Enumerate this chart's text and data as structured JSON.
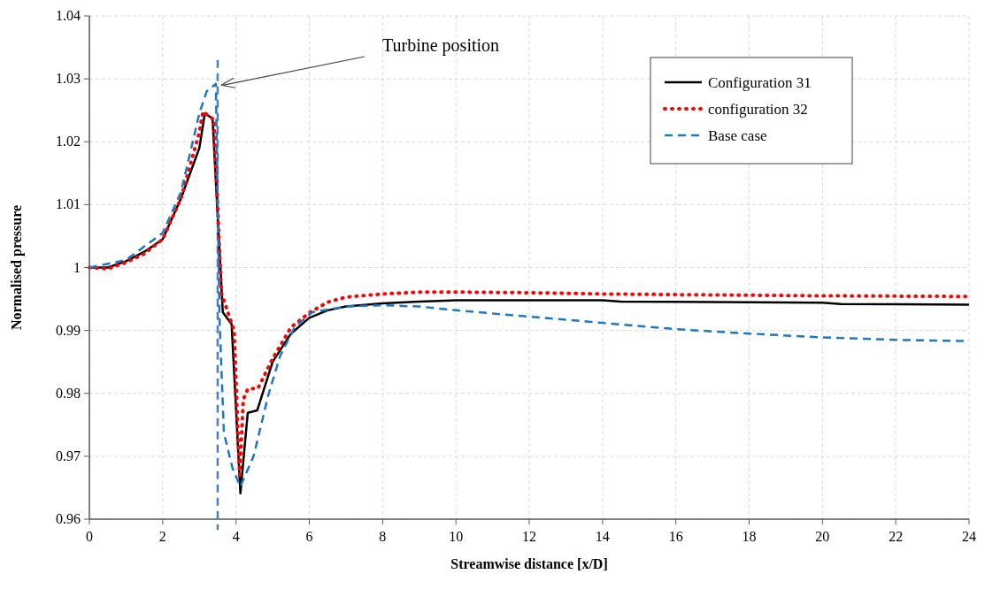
{
  "chart_data": {
    "type": "line",
    "xlabel": "Streamwise distance [x/D]",
    "ylabel": "Normalised pressure",
    "xlim": [
      0,
      24
    ],
    "xticks": [
      0,
      2,
      4,
      6,
      8,
      10,
      12,
      14,
      16,
      18,
      20,
      22,
      24
    ],
    "ylim": [
      0.96,
      1.04
    ],
    "yticks": [
      0.96,
      0.97,
      0.98,
      0.99,
      1,
      1.01,
      1.02,
      1.03,
      1.04
    ],
    "grid": true,
    "legend": "top right",
    "series": [
      {
        "name": "Configuration 31",
        "color": "#000000",
        "line_style": "solid",
        "x": [
          0,
          0.5,
          1,
          1.5,
          2,
          2.5,
          3,
          3.15,
          3.36,
          3.64,
          3.88,
          4.12,
          4.32,
          4.58,
          5,
          5.5,
          6,
          6.5,
          7,
          8,
          9,
          10,
          14,
          14.5,
          17,
          20,
          20.5,
          24
        ],
        "values": [
          1.0,
          1.0,
          1.001,
          1.0025,
          1.0045,
          1.011,
          1.019,
          1.0245,
          1.0237,
          0.9929,
          0.991,
          0.9641,
          0.9769,
          0.9773,
          0.985,
          0.9895,
          0.992,
          0.9932,
          0.9938,
          0.9943,
          0.9946,
          0.9948,
          0.9948,
          0.9946,
          0.9945,
          0.9944,
          0.9942,
          0.9941
        ]
      },
      {
        "name": "configuration 32",
        "color": "#ff0000",
        "line_style": "dotted",
        "x": [
          0,
          0.5,
          1,
          1.5,
          2,
          2.5,
          3,
          3.1,
          3.4,
          3.6,
          3.8,
          3.95,
          4.1,
          4.2,
          4.32,
          4.6,
          5,
          5.5,
          6,
          6.5,
          7,
          8,
          9,
          10,
          12,
          14,
          16,
          18,
          20,
          24
        ],
        "values": [
          1.0,
          0.9998,
          1.0008,
          1.0022,
          1.0045,
          1.011,
          1.0215,
          1.0248,
          1.0235,
          0.996,
          0.9925,
          0.99,
          0.967,
          0.979,
          0.9807,
          0.9808,
          0.9855,
          0.9905,
          0.9928,
          0.9945,
          0.9953,
          0.9958,
          0.9961,
          0.9961,
          0.996,
          0.9958,
          0.9957,
          0.9956,
          0.9955,
          0.9954
        ]
      },
      {
        "name": "Base case",
        "color": "#1f77c4",
        "line_style": "dashed",
        "x": [
          0,
          1,
          2,
          2.5,
          3,
          3.2,
          3.45,
          3.55,
          3.67,
          3.91,
          4.12,
          4.48,
          4.88,
          5.2,
          5.6,
          6.08,
          7,
          8,
          9,
          10,
          12,
          14,
          16,
          18,
          20,
          22,
          24
        ],
        "values": [
          1.0,
          1.0012,
          1.0055,
          1.012,
          1.0245,
          1.028,
          1.0292,
          0.9919,
          0.9737,
          0.968,
          0.9652,
          0.97,
          0.9797,
          0.9859,
          0.9905,
          0.9929,
          0.9938,
          0.994,
          0.9938,
          0.9932,
          0.9922,
          0.9912,
          0.9902,
          0.9895,
          0.9889,
          0.9885,
          0.9883
        ]
      }
    ],
    "ref_lines": [
      {
        "axis": "x",
        "value": 3.5,
        "color": "#4a7fc0",
        "line_style": "dashed"
      }
    ],
    "annotations": [
      {
        "text": "Turbine position",
        "x": 3.5,
        "y": 1.029
      }
    ]
  }
}
